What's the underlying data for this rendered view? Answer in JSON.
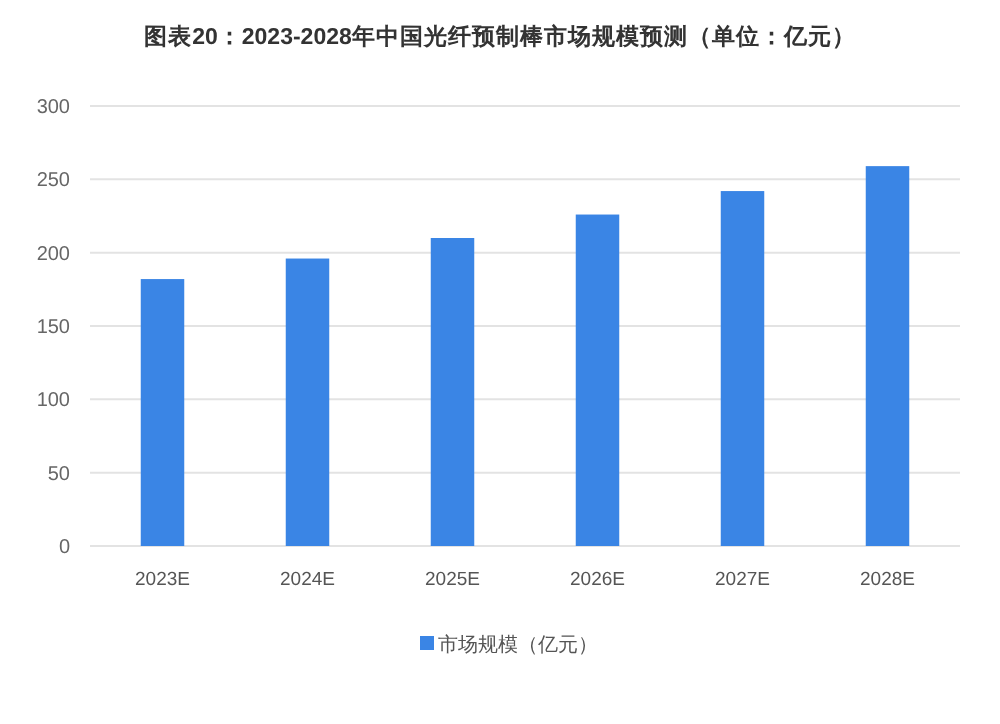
{
  "chart_data": {
    "type": "bar",
    "title": "图表20：2023-2028年中国光纤预制棒市场规模预测（单位：亿元）",
    "categories": [
      "2023E",
      "2024E",
      "2025E",
      "2026E",
      "2027E",
      "2028E"
    ],
    "series": [
      {
        "name": "市场规模（亿元）",
        "color": "#3a85e5",
        "values": [
          182,
          196,
          210,
          226,
          242,
          259
        ]
      }
    ],
    "ylim": [
      0,
      300
    ],
    "yticks": [
      0,
      50,
      100,
      150,
      200,
      250,
      300
    ],
    "grid": "y",
    "legend": "bottom"
  }
}
